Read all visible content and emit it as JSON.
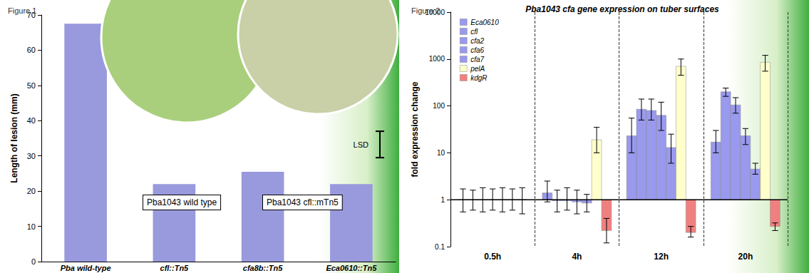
{
  "chart_data": [
    {
      "type": "bar",
      "title": "Figure 1",
      "categories": [
        "Pba wild-type",
        "cfl::Tn5",
        "cfa8b::Tn5",
        "Eca0610::Tn5"
      ],
      "values": [
        67.5,
        22,
        25.5,
        22
      ],
      "color": "#9999dd",
      "y_label": "Length of lesion (mm)",
      "ylim": [
        0,
        70
      ],
      "yticks": [
        0,
        10,
        20,
        30,
        40,
        50,
        60,
        70
      ],
      "lsd": {
        "label": "LSD",
        "low": 29.5,
        "high": 37
      },
      "annotations": [
        "Pba1043 wild type",
        "Pba1043 cfl::mTn5"
      ],
      "grid": false
    },
    {
      "type": "bar",
      "title": "Figure 2",
      "subtitle": "Pba1043 cfa gene expression on tuber surfaces",
      "categories": [
        "0.5h",
        "4h",
        "12h",
        "20h"
      ],
      "series": [
        {
          "name": "Eca0610",
          "color": "#9999ee",
          "values": [
            1,
            1.4,
            23,
            17
          ],
          "errors": [
            [
              0.55,
              1.7
            ],
            [
              0.9,
              2.5
            ],
            [
              10,
              55
            ],
            [
              10,
              30
            ]
          ]
        },
        {
          "name": "cfl",
          "color": "#9999ee",
          "values": [
            1,
            0.95,
            85,
            200
          ],
          "errors": [
            [
              0.6,
              1.6
            ],
            [
              0.55,
              1.6
            ],
            [
              50,
              140
            ],
            [
              160,
              240
            ]
          ]
        },
        {
          "name": "cfa2",
          "color": "#9999ee",
          "values": [
            1,
            0.95,
            80,
            105
          ],
          "errors": [
            [
              0.55,
              1.8
            ],
            [
              0.6,
              1.8
            ],
            [
              50,
              140
            ],
            [
              70,
              150
            ]
          ]
        },
        {
          "name": "cfa6",
          "color": "#9999ee",
          "values": [
            1,
            0.9,
            63,
            23
          ],
          "errors": [
            [
              0.6,
              1.7
            ],
            [
              0.5,
              1.6
            ],
            [
              30,
              120
            ],
            [
              15,
              33
            ]
          ]
        },
        {
          "name": "cfa7",
          "color": "#9999ee",
          "values": [
            1,
            0.85,
            13,
            4.5
          ],
          "errors": [
            [
              0.55,
              1.8
            ],
            [
              0.55,
              1.3
            ],
            [
              6,
              25
            ],
            [
              3.5,
              6
            ]
          ]
        },
        {
          "name": "pelA",
          "color": "#ffffcc",
          "values": [
            1,
            19,
            700,
            850
          ],
          "errors": [
            [
              0.6,
              1.7
            ],
            [
              10,
              35
            ],
            [
              450,
              1000
            ],
            [
              550,
              1200
            ]
          ]
        },
        {
          "name": "kdgR",
          "color": "#f08080",
          "values": [
            1,
            0.22,
            0.2,
            0.27
          ],
          "errors": [
            [
              0.5,
              1.8
            ],
            [
              0.12,
              0.4
            ],
            [
              0.16,
              0.27
            ],
            [
              0.22,
              0.32
            ]
          ]
        }
      ],
      "log": "y",
      "y_label": "fold expression change",
      "ylim": [
        0.1,
        10000
      ],
      "yticks": [
        0.1,
        1,
        10,
        100,
        1000,
        10000
      ],
      "legend": "upper left",
      "grid": false
    }
  ]
}
